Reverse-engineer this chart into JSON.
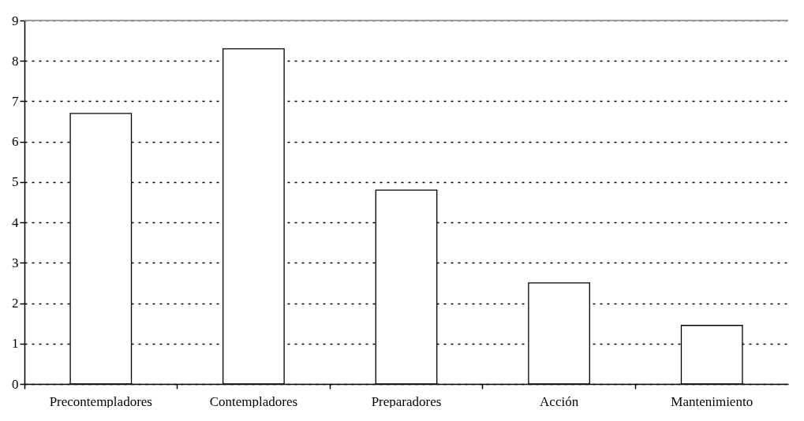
{
  "chart_data": {
    "type": "bar",
    "categories": [
      "Precontempladores",
      "Contempladores",
      "Preparadores",
      "Acción",
      "Mantenimiento"
    ],
    "values": [
      6.7,
      8.3,
      4.8,
      2.5,
      1.45
    ],
    "color": "#ffffff",
    "ylim": [
      0,
      9
    ],
    "yticks": [
      0,
      1,
      2,
      3,
      4,
      5,
      6,
      7,
      8,
      9
    ],
    "grid": "y"
  }
}
